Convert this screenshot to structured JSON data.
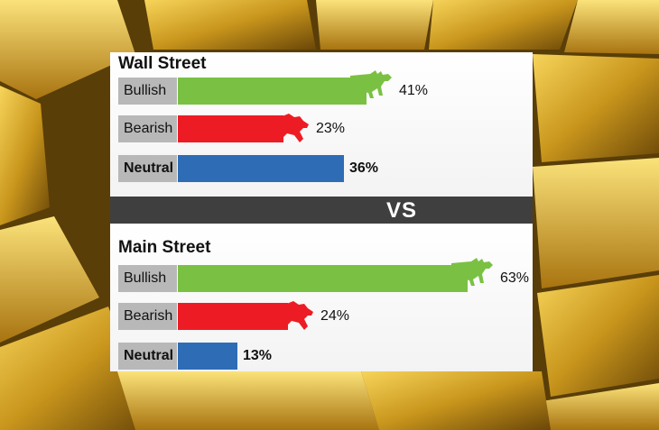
{
  "chart_data": [
    {
      "type": "bar",
      "title": "Wall Street",
      "categories": [
        "Bullish",
        "Bearish",
        "Neutral"
      ],
      "values": [
        41,
        23,
        36
      ],
      "value_labels": [
        "41%",
        "23%",
        "36%"
      ],
      "colors": [
        "#7ac143",
        "#ed1c24",
        "#2e6db5"
      ]
    },
    {
      "type": "bar",
      "title": "Main Street",
      "categories": [
        "Bullish",
        "Bearish",
        "Neutral"
      ],
      "values": [
        63,
        24,
        13
      ],
      "value_labels": [
        "63%",
        "24%",
        "13%"
      ],
      "colors": [
        "#7ac143",
        "#ed1c24",
        "#2e6db5"
      ]
    }
  ],
  "vs_label": "VS",
  "icons": {
    "bull": "bull-icon",
    "bear": "bear-icon"
  }
}
